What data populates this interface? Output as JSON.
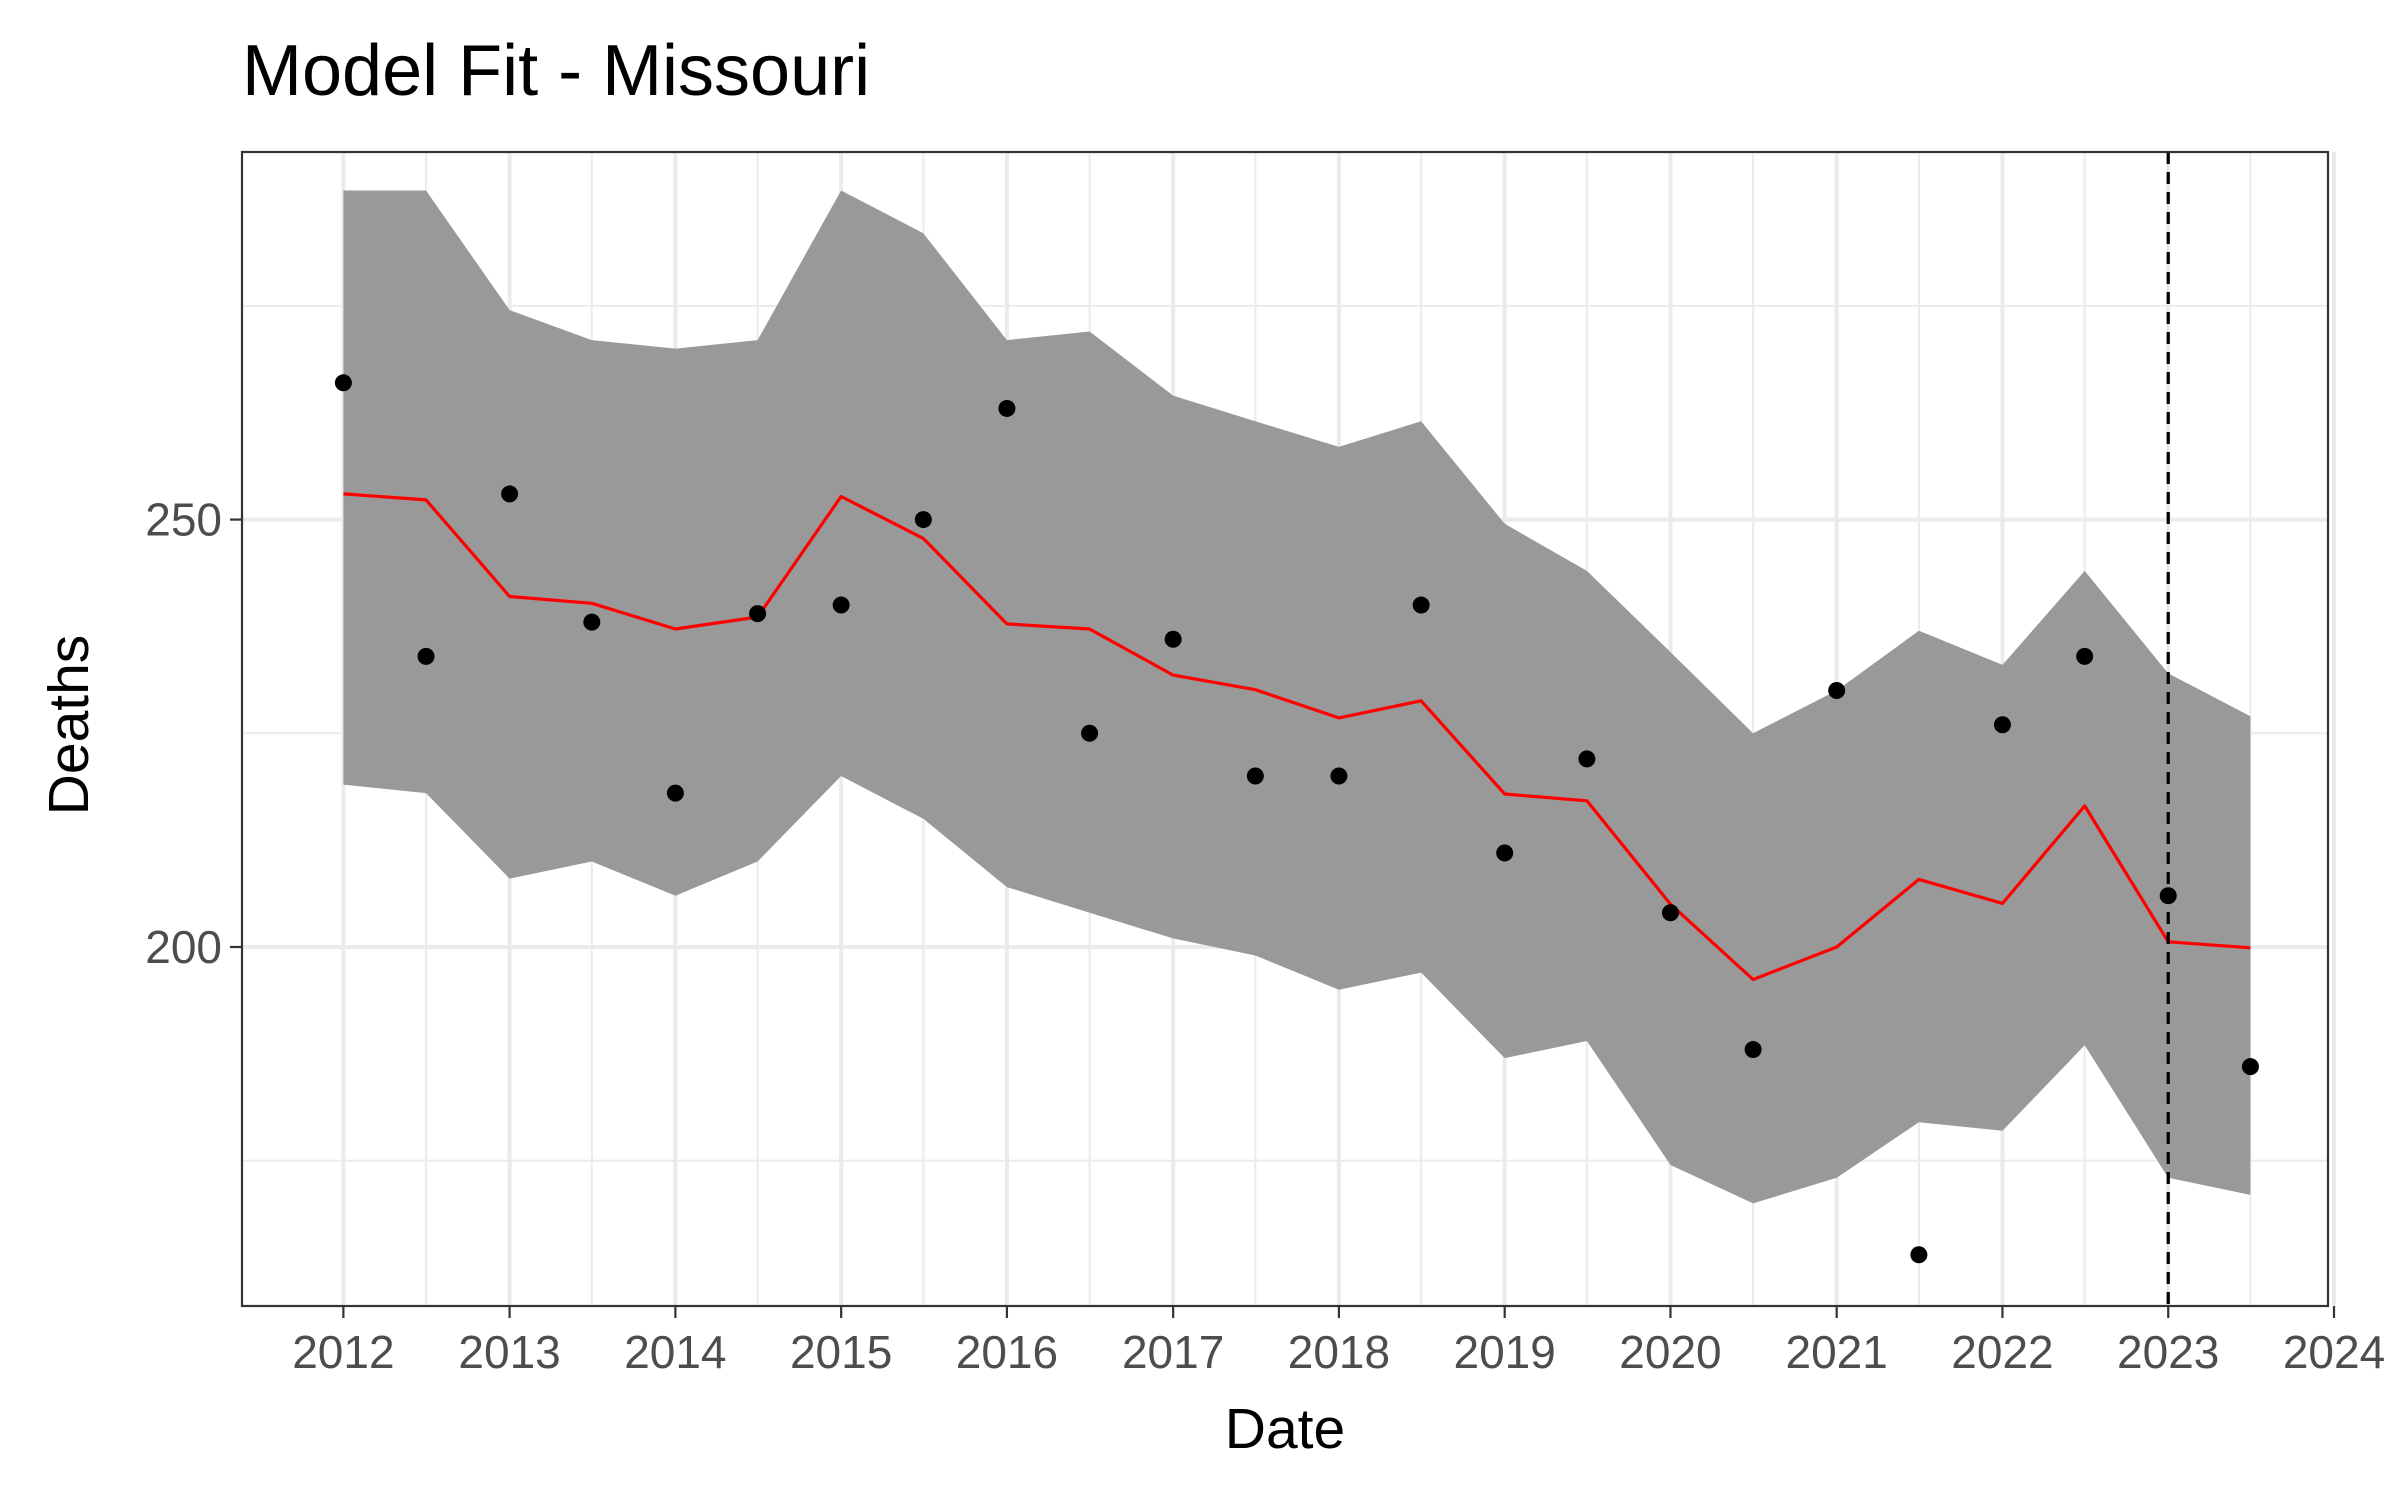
{
  "chart_data": {
    "type": "line",
    "title": "Model Fit - Missouri",
    "xlabel": "Date",
    "ylabel": "Deaths",
    "x_ticks": [
      "2012",
      "2013",
      "2014",
      "2015",
      "2016",
      "2017",
      "2018",
      "2019",
      "2020",
      "2021",
      "2022",
      "2023",
      "2024"
    ],
    "y_ticks": [
      "200",
      "250"
    ],
    "xlim": [
      "2011-06-05",
      "2024-01-01"
    ],
    "ylim": [
      158,
      293
    ],
    "grid": true,
    "x": [
      "2012-01-01",
      "2012-07-01",
      "2013-01-01",
      "2013-07-01",
      "2014-01-01",
      "2014-07-01",
      "2015-01-01",
      "2015-07-01",
      "2016-01-01",
      "2016-07-01",
      "2017-01-01",
      "2017-07-01",
      "2018-01-01",
      "2018-07-01",
      "2019-01-01",
      "2019-07-01",
      "2020-01-01",
      "2020-07-01",
      "2021-01-01",
      "2021-07-01",
      "2022-01-01",
      "2022-07-01",
      "2023-01-01",
      "2023-07-01"
    ],
    "series": [
      {
        "role": "observed",
        "color": "#000000",
        "values": [
          266,
          234,
          253,
          238,
          218,
          239,
          240,
          250,
          263,
          225,
          236,
          220,
          220,
          240,
          211,
          222,
          204,
          188,
          230,
          164,
          226,
          234,
          206,
          186
        ]
      },
      {
        "role": "fitted",
        "color": "#ff0000",
        "values": [
          253,
          252.3,
          241,
          240.2,
          237.2,
          238.6,
          252.7,
          247.8,
          237.8,
          237.2,
          231.8,
          230.1,
          226.8,
          228.8,
          217.9,
          217.1,
          205,
          196.2,
          200,
          207.9,
          205.1,
          216.5,
          200.6,
          199.9
        ]
      },
      {
        "role": "interval_upper",
        "color": "#999999",
        "values": [
          288.5,
          288.5,
          274.5,
          271,
          270,
          271,
          288.5,
          283.5,
          271,
          272,
          264.5,
          261.5,
          258.5,
          261.5,
          249.5,
          244,
          234.5,
          225,
          230,
          237,
          233,
          244,
          232,
          227
        ]
      },
      {
        "role": "interval_lower",
        "color": "#999999",
        "values": [
          219,
          218,
          208,
          210,
          206,
          210,
          220,
          215,
          207,
          204,
          201,
          199,
          195,
          197,
          187,
          189,
          174.5,
          170,
          173,
          179.5,
          178.5,
          188.5,
          173,
          171
        ]
      }
    ],
    "reference_line": {
      "x": "2023-01-01",
      "style": "dashed",
      "color": "#000000"
    }
  }
}
